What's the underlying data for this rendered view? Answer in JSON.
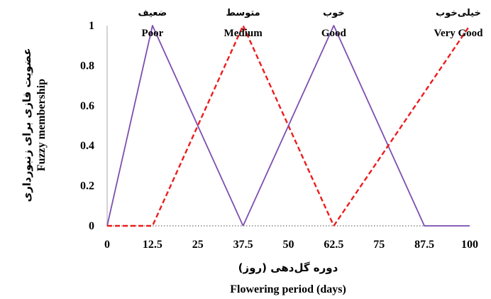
{
  "chart_data": {
    "type": "line",
    "title": "",
    "xlabel_fa": "دوره گل‌دهی (روز)",
    "xlabel": "Flowering period (days)",
    "ylabel_fa": "عضویت فازی برای زنبورداری",
    "ylabel": "Fuzzy membership",
    "xlim": [
      0,
      100
    ],
    "ylim": [
      0,
      1
    ],
    "x_ticks": [
      "0",
      "12.5",
      "25",
      "37.5",
      "50",
      "62.5",
      "75",
      "87.5",
      "100"
    ],
    "y_ticks": [
      "0",
      "0.2",
      "0.4",
      "0.6",
      "0.8",
      "1"
    ],
    "categories": [
      {
        "fa": "ضعیف",
        "en": "Poor",
        "x": 12.5
      },
      {
        "fa": "متوسط",
        "en": "Medium",
        "x": 37.5
      },
      {
        "fa": "خوب",
        "en": "Good",
        "x": 62.5
      },
      {
        "fa": "خیلی‌خوب",
        "en": "Very Good",
        "x": 100
      }
    ],
    "series": [
      {
        "key": "poor",
        "style": "solid",
        "color": "#7d4fb0",
        "points": [
          [
            0,
            0
          ],
          [
            12.5,
            1
          ],
          [
            37.5,
            0
          ]
        ]
      },
      {
        "key": "medium",
        "style": "dashed",
        "color": "#ee1c1c",
        "points": [
          [
            0,
            0
          ],
          [
            12.5,
            0
          ],
          [
            37.5,
            1
          ],
          [
            62.5,
            0
          ]
        ]
      },
      {
        "key": "good",
        "style": "solid",
        "color": "#7d4fb0",
        "points": [
          [
            37.5,
            0
          ],
          [
            62.5,
            1
          ],
          [
            87.5,
            0
          ],
          [
            100,
            0
          ]
        ]
      },
      {
        "key": "very_good",
        "style": "dashed",
        "color": "#ee1c1c",
        "points": [
          [
            62.5,
            0
          ],
          [
            100,
            1
          ]
        ]
      }
    ],
    "grid": false,
    "baseline_style": "dotted"
  }
}
